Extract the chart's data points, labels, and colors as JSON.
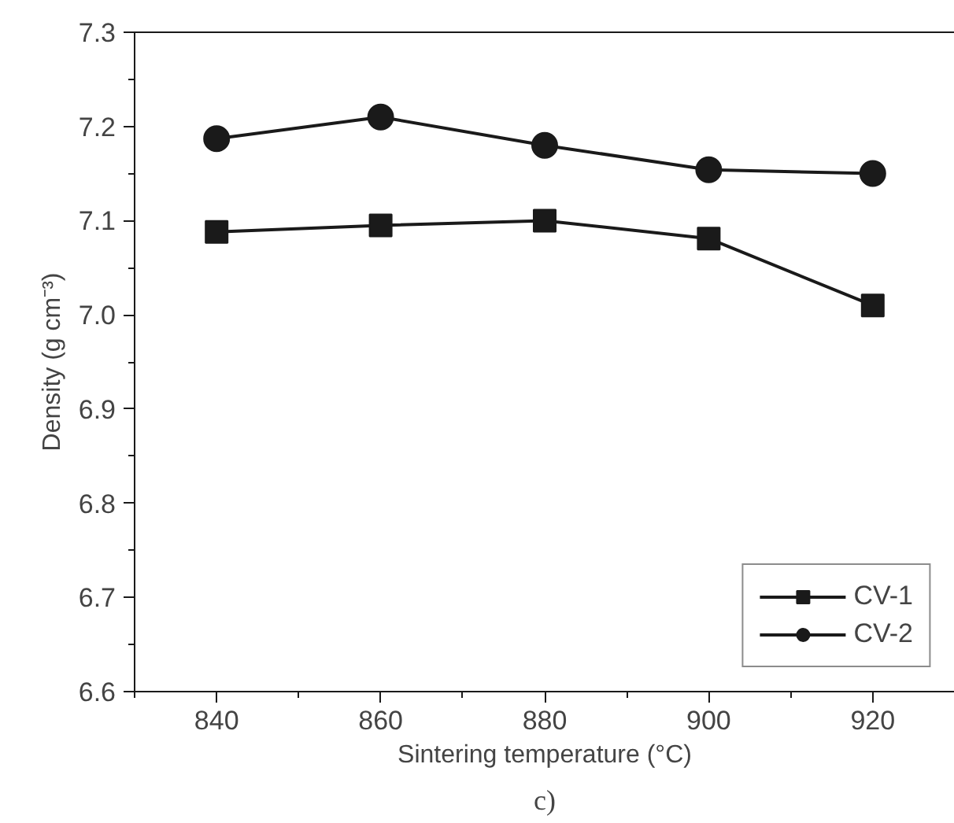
{
  "chart_data": {
    "type": "line",
    "xlabel": "Sintering temperature (°C)",
    "ylabel": "Density (g cm⁻³)",
    "x": [
      840,
      860,
      880,
      900,
      920
    ],
    "series": [
      {
        "name": "CV-1",
        "color": "#1a1a1a",
        "marker": "square",
        "values": [
          7.088,
          7.095,
          7.1,
          7.081,
          7.01
        ]
      },
      {
        "name": "CV-2",
        "color": "#1a1a1a",
        "marker": "circle",
        "values": [
          7.187,
          7.21,
          7.18,
          7.154,
          7.15
        ]
      }
    ],
    "xlim": [
      830,
      930
    ],
    "xticks": [
      840,
      860,
      880,
      900,
      920
    ],
    "ylim": [
      6.6,
      7.3
    ],
    "yticks": [
      6.6,
      6.7,
      6.8,
      6.9,
      {
        "value": 7.0,
        "label": "7.0"
      },
      7.1,
      7.2,
      7.3
    ],
    "grid": false,
    "legend": "bottom right",
    "line_style": "solid",
    "annotations": [
      "c)"
    ]
  }
}
